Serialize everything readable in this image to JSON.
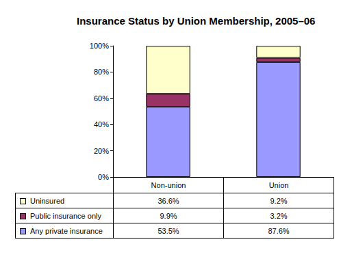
{
  "chart_data": {
    "type": "bar",
    "title": "Insurance Status by Union Membership, 2005–06",
    "categories": [
      "Non-union",
      "Union"
    ],
    "stacked": true,
    "grid": false,
    "series": [
      {
        "name": "Any private insurance",
        "color": "#9999ff",
        "values": [
          53.5,
          87.6
        ],
        "value_labels": [
          "53.5%",
          "87.6%"
        ]
      },
      {
        "name": "Public insurance only",
        "color": "#993366",
        "values": [
          9.9,
          3.2
        ],
        "value_labels": [
          "9.9%",
          "3.2%"
        ]
      },
      {
        "name": "Uninsured",
        "color": "#ffffcc",
        "values": [
          36.6,
          9.2
        ],
        "value_labels": [
          "36.6%",
          "9.2%"
        ]
      }
    ],
    "ylim": [
      0,
      100
    ],
    "yticks": [
      {
        "value": 0,
        "label": "0%"
      },
      {
        "value": 20,
        "label": "20%"
      },
      {
        "value": 40,
        "label": "40%"
      },
      {
        "value": 60,
        "label": "60%"
      },
      {
        "value": 80,
        "label": "80%"
      },
      {
        "value": 100,
        "label": "100%"
      }
    ]
  }
}
